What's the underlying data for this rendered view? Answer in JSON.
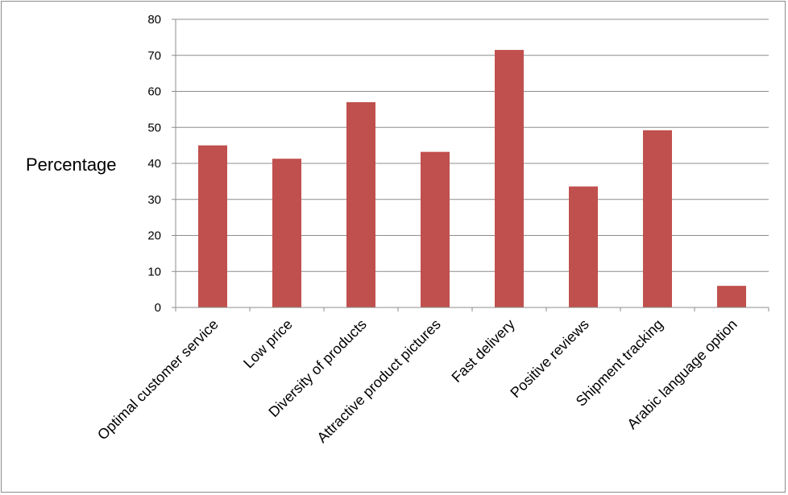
{
  "chart_data": {
    "type": "bar",
    "categories": [
      "Optimal customer service",
      "Low price",
      "Diversity of products",
      "Attractive product pictures",
      "Fast delivery",
      "Positive reviews",
      "Shipment tracking",
      "Arabic language option"
    ],
    "values": [
      45,
      41.3,
      57,
      43.2,
      71.5,
      33.6,
      49.2,
      6
    ],
    "title": "",
    "xlabel": "",
    "ylabel": "Percentage",
    "ylim": [
      0,
      80
    ],
    "yticks": [
      0,
      10,
      20,
      30,
      40,
      50,
      60,
      70,
      80
    ],
    "grid": true,
    "legend": "none",
    "bar_color": "#c0504d",
    "gridline_color": "#8c8c8c"
  }
}
